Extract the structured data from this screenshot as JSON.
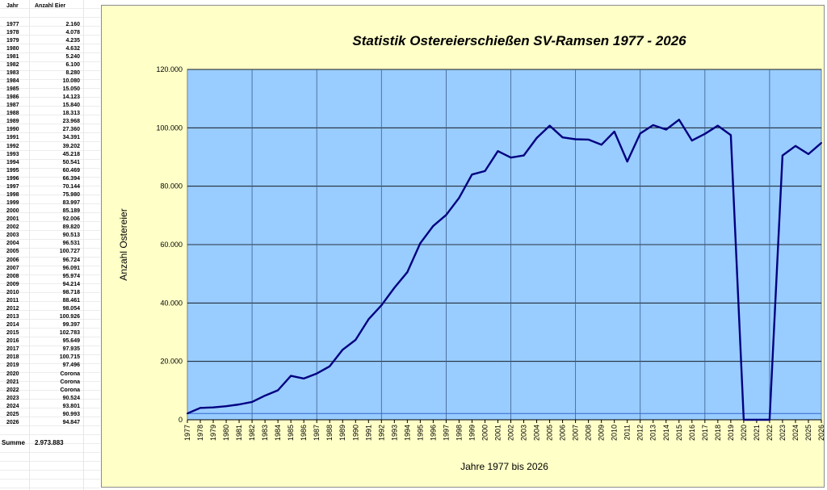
{
  "sheet": {
    "header_year": "Jahr",
    "header_count": "Anzahl Eier",
    "rows": [
      {
        "year": "1977",
        "value": "2.160"
      },
      {
        "year": "1978",
        "value": "4.078"
      },
      {
        "year": "1979",
        "value": "4.235"
      },
      {
        "year": "1980",
        "value": "4.632"
      },
      {
        "year": "1981",
        "value": "5.240"
      },
      {
        "year": "1982",
        "value": "6.100"
      },
      {
        "year": "1983",
        "value": "8.280"
      },
      {
        "year": "1984",
        "value": "10.080"
      },
      {
        "year": "1985",
        "value": "15.050"
      },
      {
        "year": "1986",
        "value": "14.123"
      },
      {
        "year": "1987",
        "value": "15.840"
      },
      {
        "year": "1988",
        "value": "18.313"
      },
      {
        "year": "1989",
        "value": "23.968"
      },
      {
        "year": "1990",
        "value": "27.360"
      },
      {
        "year": "1991",
        "value": "34.391"
      },
      {
        "year": "1992",
        "value": "39.202"
      },
      {
        "year": "1993",
        "value": "45.218"
      },
      {
        "year": "1994",
        "value": "50.541"
      },
      {
        "year": "1995",
        "value": "60.469"
      },
      {
        "year": "1996",
        "value": "66.394"
      },
      {
        "year": "1997",
        "value": "70.144"
      },
      {
        "year": "1998",
        "value": "75.980"
      },
      {
        "year": "1999",
        "value": "83.997"
      },
      {
        "year": "2000",
        "value": "85.189"
      },
      {
        "year": "2001",
        "value": "92.006"
      },
      {
        "year": "2002",
        "value": "89.820"
      },
      {
        "year": "2003",
        "value": "90.513"
      },
      {
        "year": "2004",
        "value": "96.531"
      },
      {
        "year": "2005",
        "value": "100.727"
      },
      {
        "year": "2006",
        "value": "96.724"
      },
      {
        "year": "2007",
        "value": "96.091"
      },
      {
        "year": "2008",
        "value": "95.974"
      },
      {
        "year": "2009",
        "value": "94.214"
      },
      {
        "year": "2010",
        "value": "98.718"
      },
      {
        "year": "2011",
        "value": "88.461"
      },
      {
        "year": "2012",
        "value": "98.054"
      },
      {
        "year": "2013",
        "value": "100.926"
      },
      {
        "year": "2014",
        "value": "99.397"
      },
      {
        "year": "2015",
        "value": "102.783"
      },
      {
        "year": "2016",
        "value": "95.649"
      },
      {
        "year": "2017",
        "value": "97.935"
      },
      {
        "year": "2018",
        "value": "100.715"
      },
      {
        "year": "2019",
        "value": "97.496"
      },
      {
        "year": "2020",
        "value": "Corona"
      },
      {
        "year": "2021",
        "value": "Corona"
      },
      {
        "year": "2022",
        "value": "Corona"
      },
      {
        "year": "2023",
        "value": "90.524"
      },
      {
        "year": "2024",
        "value": "93.801"
      },
      {
        "year": "2025",
        "value": "90.993"
      },
      {
        "year": "2026",
        "value": "94.847"
      }
    ],
    "sum_label": "Summe",
    "sum_value": "2.973.883"
  },
  "colors": {
    "plot_background": "#99ccff",
    "chart_background": "#ffffc8",
    "line": "#000080",
    "gridline": "#000000"
  },
  "chart_data": {
    "type": "line",
    "title": "Statistik Ostereierschießen SV-Ramsen 1977 - 2026",
    "xlabel": "Jahre 1977 bis 2026",
    "ylabel": "Anzahl Ostereier",
    "ylim": [
      0,
      120000
    ],
    "yticks": [
      "0",
      "20.000",
      "40.000",
      "60.000",
      "80.000",
      "100.000",
      "120.000"
    ],
    "grid": true,
    "categories": [
      "1977",
      "1978",
      "1979",
      "1980",
      "1981",
      "1982",
      "1983",
      "1984",
      "1985",
      "1986",
      "1987",
      "1988",
      "1989",
      "1990",
      "1991",
      "1992",
      "1993",
      "1994",
      "1995",
      "1996",
      "1997",
      "1998",
      "1999",
      "2000",
      "2001",
      "2002",
      "2003",
      "2004",
      "2005",
      "2006",
      "2007",
      "2008",
      "2009",
      "2010",
      "2011",
      "2012",
      "2013",
      "2014",
      "2015",
      "2016",
      "2017",
      "2018",
      "2019",
      "2020",
      "2021",
      "2022",
      "2023",
      "2024",
      "2025",
      "2026"
    ],
    "series": [
      {
        "values": [
          2160,
          4078,
          4235,
          4632,
          5240,
          6100,
          8280,
          10080,
          15050,
          14123,
          15840,
          18313,
          23968,
          27360,
          34391,
          39202,
          45218,
          50541,
          60469,
          66394,
          70144,
          75980,
          83997,
          85189,
          92006,
          89820,
          90513,
          96531,
          100727,
          96724,
          96091,
          95974,
          94214,
          98718,
          88461,
          98054,
          100926,
          99397,
          102783,
          95649,
          97935,
          100715,
          97496,
          0,
          0,
          0,
          90524,
          93801,
          90993,
          94847
        ]
      }
    ]
  }
}
